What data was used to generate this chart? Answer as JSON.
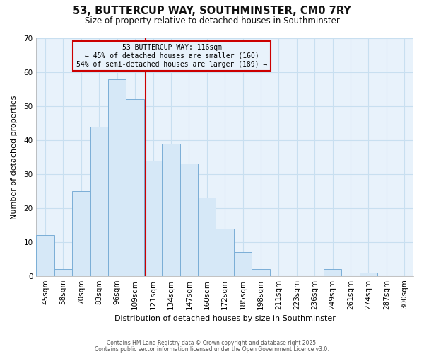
{
  "title": "53, BUTTERCUP WAY, SOUTHMINSTER, CM0 7RY",
  "subtitle": "Size of property relative to detached houses in Southminster",
  "xlabel": "Distribution of detached houses by size in Southminster",
  "ylabel": "Number of detached properties",
  "bar_labels": [
    "45sqm",
    "58sqm",
    "70sqm",
    "83sqm",
    "96sqm",
    "109sqm",
    "121sqm",
    "134sqm",
    "147sqm",
    "160sqm",
    "172sqm",
    "185sqm",
    "198sqm",
    "211sqm",
    "223sqm",
    "236sqm",
    "249sqm",
    "261sqm",
    "274sqm",
    "287sqm",
    "300sqm"
  ],
  "bar_heights": [
    12,
    2,
    25,
    44,
    58,
    52,
    34,
    39,
    33,
    23,
    14,
    7,
    2,
    0,
    0,
    0,
    2,
    0,
    1,
    0,
    0
  ],
  "bar_color": "#d6e8f7",
  "bar_edge_color": "#7aaed6",
  "grid_color": "#c8dff0",
  "background_color": "#ffffff",
  "plot_bg_color": "#e8f2fb",
  "vline_color": "#cc0000",
  "annotation_text": "53 BUTTERCUP WAY: 116sqm\n← 45% of detached houses are smaller (160)\n54% of semi-detached houses are larger (189) →",
  "annotation_box_color": "#cc0000",
  "ylim": [
    0,
    70
  ],
  "yticks": [
    0,
    10,
    20,
    30,
    40,
    50,
    60,
    70
  ],
  "footnote1": "Contains HM Land Registry data © Crown copyright and database right 2025.",
  "footnote2": "Contains public sector information licensed under the Open Government Licence v3.0."
}
